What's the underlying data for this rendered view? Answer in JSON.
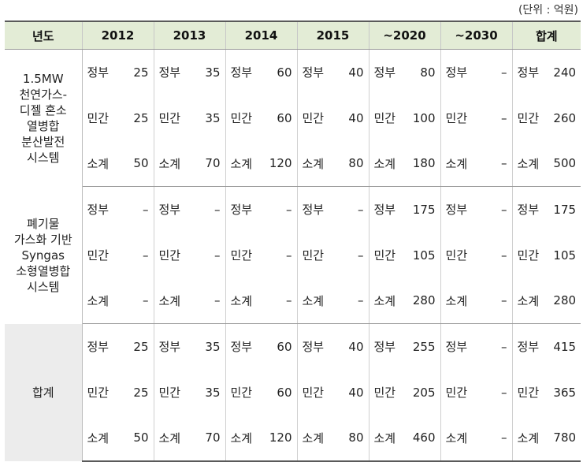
{
  "unit_note": "(단위 : 억원)",
  "headers": [
    "년도",
    "2012",
    "2013",
    "2014",
    "2015",
    "~2020",
    "~2030",
    "합계"
  ],
  "groups": [
    {
      "category_lines": [
        "1.5MW",
        "천연가스-",
        "디젤 혼소",
        "열병합",
        "분산발전",
        "시스템"
      ],
      "rows": [
        {
          "cells": [
            [
              "정부",
              "25"
            ],
            [
              "정부",
              "35"
            ],
            [
              "정부",
              "60"
            ],
            [
              "정부",
              "40"
            ],
            [
              "정부",
              "80"
            ],
            [
              "정부",
              "–"
            ],
            [
              "정부",
              "240"
            ]
          ]
        },
        {
          "cells": [
            [
              "민간",
              "25"
            ],
            [
              "민간",
              "35"
            ],
            [
              "민간",
              "60"
            ],
            [
              "민간",
              "40"
            ],
            [
              "민간",
              "100"
            ],
            [
              "민간",
              "–"
            ],
            [
              "민간",
              "260"
            ]
          ]
        },
        {
          "cells": [
            [
              "소계",
              "50"
            ],
            [
              "소계",
              "70"
            ],
            [
              "소계",
              "120"
            ],
            [
              "소계",
              "80"
            ],
            [
              "소계",
              "180"
            ],
            [
              "소계",
              "–"
            ],
            [
              "소계",
              "500"
            ]
          ]
        }
      ]
    },
    {
      "category_lines": [
        "폐기물",
        "가스화 기반",
        "Syngas",
        "소형열병합",
        "시스템"
      ],
      "rows": [
        {
          "cells": [
            [
              "정부",
              "–"
            ],
            [
              "정부",
              "–"
            ],
            [
              "정부",
              "–"
            ],
            [
              "정부",
              "–"
            ],
            [
              "정부",
              "175"
            ],
            [
              "정부",
              "–"
            ],
            [
              "정부",
              "175"
            ]
          ]
        },
        {
          "cells": [
            [
              "민간",
              "–"
            ],
            [
              "민간",
              "–"
            ],
            [
              "민간",
              "–"
            ],
            [
              "민간",
              "–"
            ],
            [
              "민간",
              "105"
            ],
            [
              "민간",
              "–"
            ],
            [
              "민간",
              "105"
            ]
          ]
        },
        {
          "cells": [
            [
              "소계",
              "–"
            ],
            [
              "소계",
              "–"
            ],
            [
              "소계",
              "–"
            ],
            [
              "소계",
              "–"
            ],
            [
              "소계",
              "280"
            ],
            [
              "소계",
              "–"
            ],
            [
              "소계",
              "280"
            ]
          ]
        }
      ]
    },
    {
      "category_lines": [
        "합계"
      ],
      "rows": [
        {
          "cells": [
            [
              "정부",
              "25"
            ],
            [
              "정부",
              "35"
            ],
            [
              "정부",
              "60"
            ],
            [
              "정부",
              "40"
            ],
            [
              "정부",
              "255"
            ],
            [
              "정부",
              "–"
            ],
            [
              "정부",
              "415"
            ]
          ]
        },
        {
          "cells": [
            [
              "민간",
              "25"
            ],
            [
              "민간",
              "35"
            ],
            [
              "민간",
              "60"
            ],
            [
              "민간",
              "40"
            ],
            [
              "민간",
              "205"
            ],
            [
              "민간",
              "–"
            ],
            [
              "민간",
              "365"
            ]
          ]
        },
        {
          "cells": [
            [
              "소계",
              "50"
            ],
            [
              "소계",
              "70"
            ],
            [
              "소계",
              "120"
            ],
            [
              "소계",
              "80"
            ],
            [
              "소계",
              "460"
            ],
            [
              "소계",
              "–"
            ],
            [
              "소계",
              "780"
            ]
          ]
        }
      ]
    }
  ]
}
